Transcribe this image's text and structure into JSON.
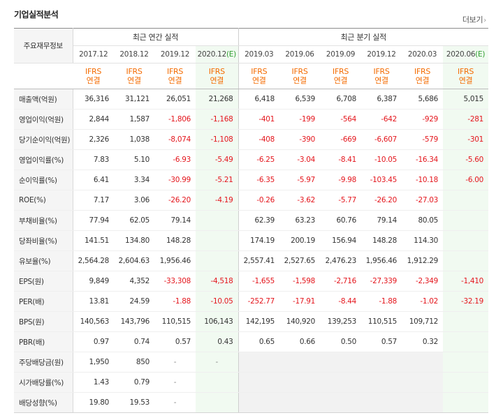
{
  "section_title": "기업실적분석",
  "more_label": "더보기",
  "more_chevron": "›",
  "header": {
    "row_label": "주요재무정보",
    "annual_title": "최근 연간 실적",
    "quarterly_title": "최근 분기 실적",
    "annual_periods": [
      "2017.12",
      "2018.12",
      "2019.12",
      "2020.12"
    ],
    "annual_estimate_marker": "(E)",
    "quarterly_periods": [
      "2019.03",
      "2019.06",
      "2019.09",
      "2019.12",
      "2020.03",
      "2020.06"
    ],
    "quarterly_estimate_marker": "(E)",
    "accounting_top": "IFRS",
    "accounting_bottom": "연결"
  },
  "rows": [
    {
      "label": "매출액(억원)",
      "values": [
        "36,316",
        "31,121",
        "26,051",
        "21,268",
        "6,418",
        "6,539",
        "6,708",
        "6,387",
        "5,686",
        "5,015"
      ]
    },
    {
      "label": "영업이익(억원)",
      "values": [
        "2,844",
        "1,587",
        "-1,806",
        "-1,168",
        "-401",
        "-199",
        "-564",
        "-642",
        "-929",
        "-281"
      ]
    },
    {
      "label": "당기순이익(억원)",
      "values": [
        "2,326",
        "1,038",
        "-8,074",
        "-1,108",
        "-408",
        "-390",
        "-669",
        "-6,607",
        "-579",
        "-301"
      ]
    },
    {
      "label": "영업이익률(%)",
      "values": [
        "7.83",
        "5.10",
        "-6.93",
        "-5.49",
        "-6.25",
        "-3.04",
        "-8.41",
        "-10.05",
        "-16.34",
        "-5.60"
      ]
    },
    {
      "label": "순이익률(%)",
      "values": [
        "6.41",
        "3.34",
        "-30.99",
        "-5.21",
        "-6.35",
        "-5.97",
        "-9.98",
        "-103.45",
        "-10.18",
        "-6.00"
      ]
    },
    {
      "label": "ROE(%)",
      "values": [
        "7.17",
        "3.06",
        "-26.20",
        "-4.19",
        "-0.26",
        "-3.62",
        "-5.77",
        "-26.20",
        "-27.03",
        ""
      ]
    },
    {
      "label": "부채비율(%)",
      "values": [
        "77.94",
        "62.05",
        "79.14",
        "",
        "62.39",
        "63.23",
        "60.76",
        "79.14",
        "80.05",
        ""
      ]
    },
    {
      "label": "당좌비율(%)",
      "values": [
        "141.51",
        "134.80",
        "148.28",
        "",
        "174.19",
        "200.19",
        "156.94",
        "148.28",
        "114.30",
        ""
      ]
    },
    {
      "label": "유보율(%)",
      "values": [
        "2,564.28",
        "2,604.63",
        "1,956.46",
        "",
        "2,557.41",
        "2,527.65",
        "2,476.23",
        "1,956.46",
        "1,912.29",
        ""
      ]
    },
    {
      "label": "EPS(원)",
      "values": [
        "9,849",
        "4,352",
        "-33,308",
        "-4,518",
        "-1,655",
        "-1,598",
        "-2,716",
        "-27,339",
        "-2,349",
        "-1,410"
      ]
    },
    {
      "label": "PER(배)",
      "values": [
        "13.81",
        "24.59",
        "-1.88",
        "-10.05",
        "-252.77",
        "-17.91",
        "-8.44",
        "-1.88",
        "-1.02",
        "-32.19"
      ]
    },
    {
      "label": "BPS(원)",
      "values": [
        "140,563",
        "143,796",
        "110,515",
        "106,143",
        "142,195",
        "140,920",
        "139,253",
        "110,515",
        "109,712",
        ""
      ]
    },
    {
      "label": "PBR(배)",
      "values": [
        "0.97",
        "0.74",
        "0.57",
        "0.43",
        "0.65",
        "0.66",
        "0.50",
        "0.57",
        "0.32",
        ""
      ]
    },
    {
      "label": "주당배당금(원)",
      "values": [
        "1,950",
        "850",
        "-",
        "-",
        "",
        "",
        "",
        "",
        "",
        ""
      ]
    },
    {
      "label": "시가배당률(%)",
      "values": [
        "1.43",
        "0.79",
        "-",
        "",
        "",
        "",
        "",
        "",
        "",
        ""
      ]
    },
    {
      "label": "배당성향(%)",
      "values": [
        "19.80",
        "19.53",
        "-",
        "",
        "",
        "",
        "",
        "",
        "",
        ""
      ]
    }
  ],
  "colors": {
    "negative": "#e4161d",
    "accounting": "#f46b00",
    "estimate_marker": "#2e9e2e",
    "estimate_bg": "#f1faf1",
    "label_bg": "#f5f5f5"
  }
}
